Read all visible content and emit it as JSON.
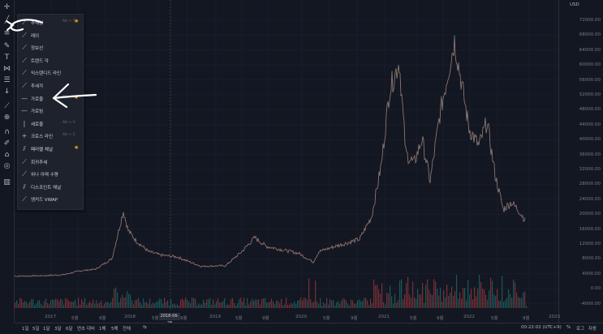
{
  "currency": "USD",
  "price_axis": [
    "72000.00",
    "68000.00",
    "64000.00",
    "60000.00",
    "56000.00",
    "52000.00",
    "48000.00",
    "44000.00",
    "40000.00",
    "36000.00",
    "32000.00",
    "28000.00",
    "24000.00",
    "20000.00",
    "16000.00",
    "12000.00",
    "8000.00",
    "4000.00",
    "0.00",
    "-4000.00"
  ],
  "time_axis": [
    "2017",
    "5월",
    "9월",
    "2018",
    "5월",
    "9월",
    "2019",
    "5월",
    "9월",
    "2020",
    "5월",
    "9월",
    "2021",
    "5월",
    "9월",
    "2022",
    "5월",
    "9월",
    "2023"
  ],
  "crosshair_date": "2018-06-28",
  "ranges": [
    "1일",
    "5일",
    "1달",
    "3달",
    "6달",
    "연초 대비",
    "1해",
    "5해",
    "전체"
  ],
  "clock": "00:22:02 (UTC+9)",
  "bottom_right": [
    "%",
    "로그",
    "자동"
  ],
  "menu_items": [
    {
      "icon": "trend-line-icon",
      "label": "추세선",
      "shortcut": "Alt + T",
      "fav": true
    },
    {
      "icon": "ray-icon",
      "label": "레이",
      "shortcut": "",
      "fav": false
    },
    {
      "icon": "info-line-icon",
      "label": "정보선",
      "shortcut": "",
      "fav": false
    },
    {
      "icon": "trend-angle-icon",
      "label": "트렌드 각",
      "shortcut": "",
      "fav": false
    },
    {
      "icon": "extended-line-icon",
      "label": "익스텐디드 라인",
      "shortcut": "",
      "fav": false
    },
    {
      "icon": "trend-angle2-icon",
      "label": "추세각",
      "shortcut": "",
      "fav": false
    },
    {
      "icon": "horizontal-line-icon",
      "label": "가로줄",
      "shortcut": "Alt + H",
      "fav": true
    },
    {
      "icon": "horizontal-ray-icon",
      "label": "가로빔",
      "shortcut": "",
      "fav": false
    },
    {
      "icon": "vertical-line-icon",
      "label": "세로줄",
      "shortcut": "Alt + V",
      "fav": false
    },
    {
      "icon": "cross-line-icon",
      "label": "크로스 라인",
      "shortcut": "Alt + C",
      "fav": false
    },
    {
      "icon": "parallel-channel-icon",
      "label": "패러렐 채널",
      "shortcut": "",
      "fav": true
    },
    {
      "icon": "regression-trend-icon",
      "label": "회귀추세",
      "shortcut": "",
      "fav": false
    },
    {
      "icon": "flat-top-bottom-icon",
      "label": "위나 아래 수평",
      "shortcut": "",
      "fav": false
    },
    {
      "icon": "disjoint-channel-icon",
      "label": "디스조인트 채널",
      "shortcut": "",
      "fav": false
    },
    {
      "icon": "anchored-vwap-icon",
      "label": "앵커드 VWAP",
      "shortcut": "",
      "fav": false
    }
  ],
  "toolbar_icons": [
    "crosshair-icon",
    "trend-line-tool-icon",
    "fib-tool-icon",
    "brush-tool-icon",
    "text-tool-icon",
    "pattern-tool-icon",
    "forecast-tool-icon",
    "arrow-down-icon",
    "ruler-icon",
    "zoom-icon",
    "magnet-icon",
    "lock-drawings-icon",
    "lock-icon",
    "eye-icon",
    "trash-icon"
  ],
  "colors": {
    "bg": "#131722",
    "up": "#26a69a",
    "down": "#ef5350",
    "menu_bg": "#1e222d",
    "star": "#f7a600"
  }
}
